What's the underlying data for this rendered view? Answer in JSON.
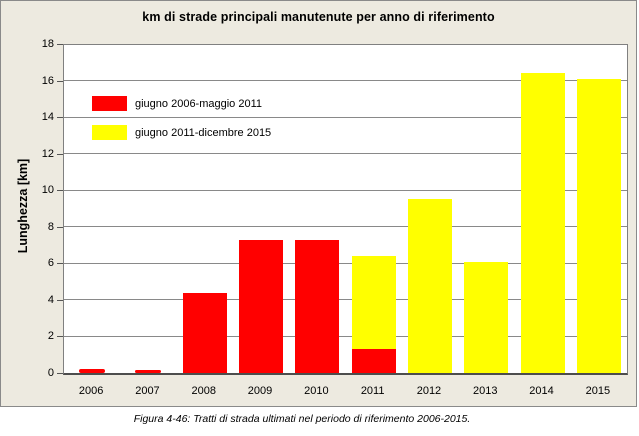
{
  "chart_data": {
    "type": "bar",
    "stacked": true,
    "title": "km di strade principali manutenute per anno di riferimento",
    "ylabel": "Lunghezza [km]",
    "xlabel": "",
    "ylim": [
      0,
      18
    ],
    "yticks": [
      0,
      2,
      4,
      6,
      8,
      10,
      12,
      14,
      16,
      18
    ],
    "grid": "horizontal",
    "legend_position": "upper-left inside plot",
    "categories": [
      "2006",
      "2007",
      "2008",
      "2009",
      "2010",
      "2011",
      "2012",
      "2013",
      "2014",
      "2015"
    ],
    "series": [
      {
        "name": "giugno 2006-maggio 2011",
        "color": "#FF0000",
        "values": [
          0.2,
          0.15,
          4.4,
          7.3,
          7.3,
          1.3,
          0,
          0,
          0,
          0
        ]
      },
      {
        "name": "giugno 2011-dicembre 2015",
        "color": "#FFFF00",
        "values": [
          0,
          0,
          0,
          0,
          0,
          5.1,
          9.5,
          6.1,
          16.4,
          16.1
        ]
      }
    ]
  },
  "caption": "Figura 4-46: Tratti di strada ultimati nel periodo di riferimento 2006-2015.",
  "colors": {
    "chart_background": "#EDEAE0",
    "plot_background": "#FFFFFF",
    "frame_border": "#8A8A8A",
    "plot_border": "#808080",
    "gridline": "#898989",
    "axis_line": "#4D4D4D",
    "text": "#000000",
    "series_red": "#FF0000",
    "series_yellow": "#FFFF00"
  }
}
